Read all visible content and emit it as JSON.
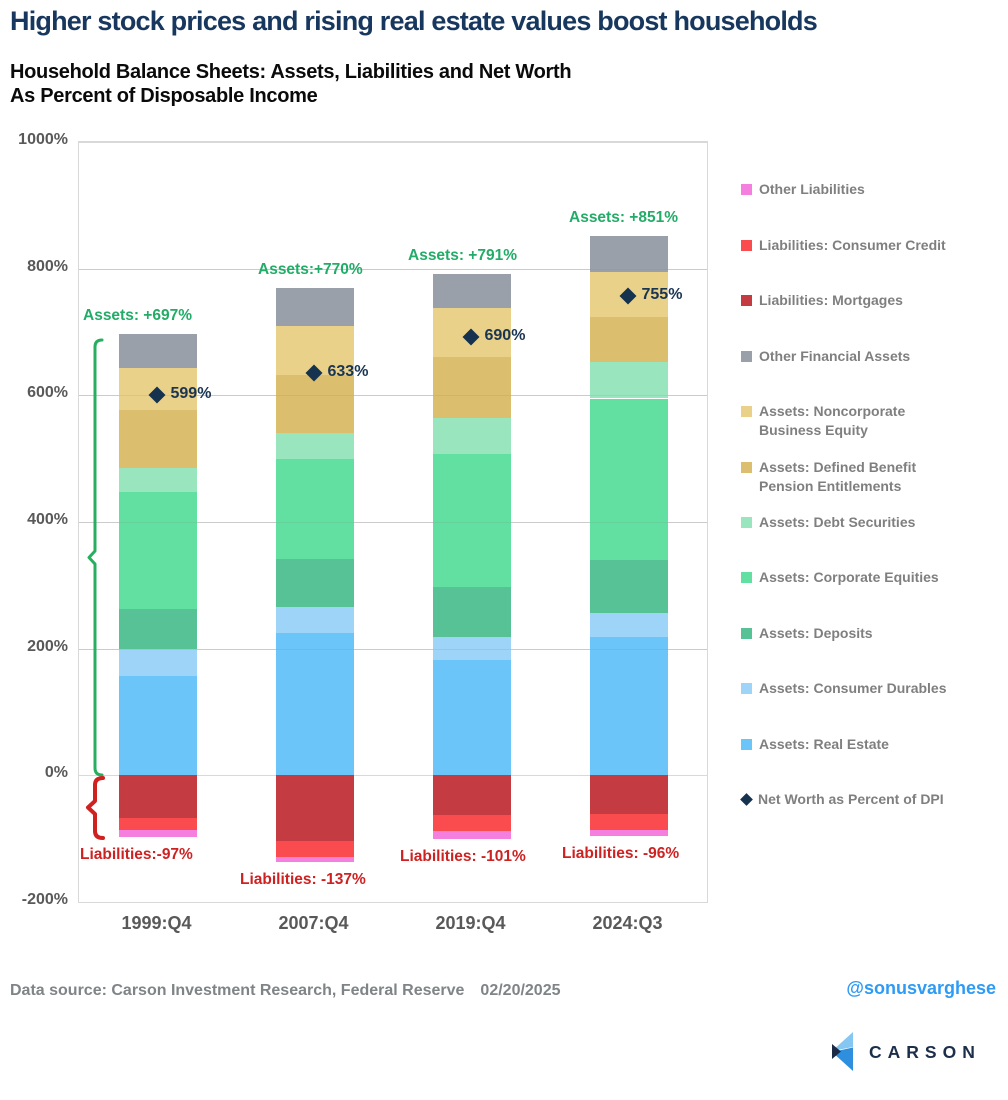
{
  "header": {
    "title": "Higher stock prices and rising real estate values boost households",
    "subtitle_line1": "Household Balance Sheets: Assets, Liabilities and Net Worth",
    "subtitle_line2": "As Percent of Disposable Income"
  },
  "chart_data": {
    "type": "bar",
    "stacked": true,
    "title": "Household Balance Sheets: Assets, Liabilities and Net Worth As Percent of Disposable Income",
    "xlabel": "",
    "ylabel": "Percent of Disposable Income",
    "ylim": [
      -200,
      1000
    ],
    "grid": true,
    "legend_position": "right",
    "categories": [
      "1999:Q4",
      "2007:Q4",
      "2019:Q4",
      "2024:Q3"
    ],
    "y_ticks": [
      {
        "value": 1000,
        "label": "1000%"
      },
      {
        "value": 800,
        "label": "800%"
      },
      {
        "value": 600,
        "label": "600%"
      },
      {
        "value": 400,
        "label": "400%"
      },
      {
        "value": 200,
        "label": "200%"
      },
      {
        "value": 0,
        "label": "0%"
      },
      {
        "value": -200,
        "label": "-200%"
      }
    ],
    "series": [
      {
        "name": "Assets: Real Estate",
        "stack": "assets",
        "color": "#6CC5F8",
        "values": [
          157,
          225,
          182,
          219
        ]
      },
      {
        "name": "Assets: Consumer Durables",
        "stack": "assets",
        "color": "#9DD4F8",
        "values": [
          43,
          41,
          37,
          37
        ]
      },
      {
        "name": "Assets: Deposits",
        "stack": "assets",
        "color": "#56C295",
        "values": [
          63,
          76,
          78,
          84
        ]
      },
      {
        "name": "Assets: Corporate Equities",
        "stack": "assets",
        "color": "#62E0A2",
        "values": [
          184,
          157,
          210,
          255
        ]
      },
      {
        "name": "Assets: Debt Securities",
        "stack": "assets",
        "color": "#99E6BE",
        "values": [
          38,
          42,
          57,
          57
        ]
      },
      {
        "name": "Assets: Defined Benefit Pension Entitlements",
        "stack": "assets",
        "color": "#DCBE6F",
        "values": [
          92,
          91,
          97,
          72
        ]
      },
      {
        "name": "Assets: Noncorporate Business Equity",
        "stack": "assets",
        "color": "#EAD189",
        "values": [
          66,
          78,
          77,
          71
        ]
      },
      {
        "name": "Other Financial Assets",
        "stack": "assets",
        "color": "#9AA0AA",
        "values": [
          54,
          60,
          53,
          56
        ]
      },
      {
        "name": "Liabilities: Mortgages",
        "stack": "liabilities",
        "color": "#C43C41",
        "values": [
          68,
          103,
          63,
          61
        ]
      },
      {
        "name": "Liabilities: Consumer Credit",
        "stack": "liabilities",
        "color": "#FA4B4F",
        "values": [
          19,
          26,
          25,
          25
        ]
      },
      {
        "name": "Other Liabilities",
        "stack": "liabilities",
        "color": "#F57FDE",
        "values": [
          10,
          8,
          13,
          10
        ]
      }
    ],
    "net_worth": {
      "name": "Net Worth as Percent of DPI",
      "color": "#15334E",
      "values": [
        599,
        633,
        690,
        755
      ],
      "labels": [
        "599%",
        "633%",
        "690%",
        "755%"
      ]
    },
    "asset_totals": [
      697,
      770,
      791,
      851
    ],
    "liability_totals": [
      -97,
      -137,
      -101,
      -96
    ],
    "asset_total_labels": [
      "Assets: +697%",
      "Assets:+770%",
      "Assets: +791%",
      "Assets: +851%"
    ],
    "liability_total_labels": [
      "Liabilities:-97%",
      "Liabilities: -137%",
      "Liabilities: -101%",
      "Liabilities: -96%"
    ]
  },
  "legend": {
    "items": [
      {
        "label": "Other Liabilities",
        "color": "#F57FDE",
        "shape": "square"
      },
      {
        "label": "Liabilities: Consumer Credit",
        "color": "#FA4B4F",
        "shape": "square"
      },
      {
        "label": "Liabilities: Mortgages",
        "color": "#C43C41",
        "shape": "square"
      },
      {
        "label": "Other Financial Assets",
        "color": "#9AA0AA",
        "shape": "square"
      },
      {
        "label": "Assets: Noncorporate\nBusiness Equity",
        "color": "#EAD189",
        "shape": "square"
      },
      {
        "label": "Assets: Defined Benefit\nPension Entitlements",
        "color": "#DCBE6F",
        "shape": "square"
      },
      {
        "label": "Assets: Debt Securities",
        "color": "#99E6BE",
        "shape": "square"
      },
      {
        "label": "Assets: Corporate Equities",
        "color": "#62E0A2",
        "shape": "square"
      },
      {
        "label": "Assets: Deposits",
        "color": "#56C295",
        "shape": "square"
      },
      {
        "label": "Assets: Consumer Durables",
        "color": "#9DD4F8",
        "shape": "square"
      },
      {
        "label": "Assets: Real Estate",
        "color": "#6CC5F8",
        "shape": "square"
      },
      {
        "label": "Net Worth as Percent of DPI",
        "color": "#15334E",
        "shape": "diamond"
      }
    ]
  },
  "annotations": {
    "assets_brace_color": "#27AE60",
    "liabilities_brace_color": "#D02020"
  },
  "footer": {
    "data_source": "Data source: Carson Investment Research, Federal Reserve",
    "date": "02/20/2025",
    "handle": "@sonusvarghese",
    "logo_text": "CARSON"
  }
}
